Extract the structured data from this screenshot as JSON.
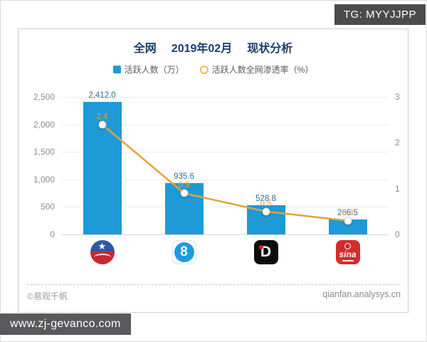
{
  "watermark_top": {
    "label": "TG: MYYJJPP",
    "bg": "#4b4b4d",
    "fg": "#ffffff"
  },
  "watermark_bottom": {
    "label": "www.zj-gevanco.com",
    "bg": "#59595b",
    "fg": "#ffffff"
  },
  "card": {
    "title": {
      "part1": "全网",
      "sep1": "·",
      "part2": "2019年02月",
      "sep2": "·",
      "part3": "现状分析"
    },
    "legend": [
      {
        "label": "活跃人数（万）",
        "swatch": "square",
        "color": "#1e9ad6"
      },
      {
        "label": "活跃人数全网渗透率（%）",
        "swatch": "circle-outline",
        "color": "#e5c053"
      }
    ],
    "footer": {
      "left": "©易观千帆",
      "right": "qianfan.analysys.cn"
    }
  },
  "chart_data": {
    "type": "combo-bar-line",
    "title": "全网 · 2019年02月 · 现状分析",
    "categories": [
      {
        "icon": "globe-star-logo",
        "glyph": "★"
      },
      {
        "icon": "eight-badge-logo",
        "glyph": "8"
      },
      {
        "icon": "idaily-logo",
        "glyph": "D"
      },
      {
        "icon": "sina-logo",
        "glyph": "sina"
      }
    ],
    "series": [
      {
        "name": "活跃人数（万）",
        "type": "bar",
        "axis": "left",
        "values": [
          2412.0,
          935.6,
          528.8,
          266.5
        ],
        "color": "#1e9ad6"
      },
      {
        "name": "活跃人数全网渗透率（%）",
        "type": "line",
        "axis": "right",
        "values": [
          2.4,
          0.9,
          0.5,
          0.3
        ],
        "color": "#e2a339"
      }
    ],
    "bar_labels": [
      "2,412.0",
      "935.6",
      "528.8",
      "266.5"
    ],
    "line_labels": [
      "2.4",
      "0.9",
      "0.5",
      "0.3"
    ],
    "left_axis": {
      "ticks": [
        "0",
        "500",
        "1,000",
        "1,500",
        "2,000",
        "2,500"
      ],
      "max": 2500
    },
    "right_axis": {
      "ticks": [
        "0",
        "1",
        "2",
        "3"
      ],
      "max": 3
    },
    "grid": true,
    "legend_position": "top",
    "xlabel": "",
    "ylabel_left": "活跃人数（万）",
    "ylabel_right": "活跃人数全网渗透率（%）",
    "colors": {
      "bar_label": "#31708f",
      "line_label": "#e8a145",
      "axis_tick": "#8c8c8c",
      "title": "#1c3c6e"
    }
  }
}
